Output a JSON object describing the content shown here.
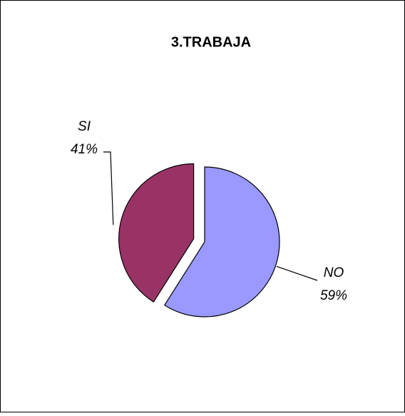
{
  "chart_data": {
    "type": "pie",
    "title": "3.TRABAJA",
    "categories": [
      "NO",
      "SI"
    ],
    "values": [
      59,
      41
    ],
    "value_labels": [
      "59%",
      "41%"
    ],
    "colors": [
      "#9999ff",
      "#993366"
    ]
  }
}
